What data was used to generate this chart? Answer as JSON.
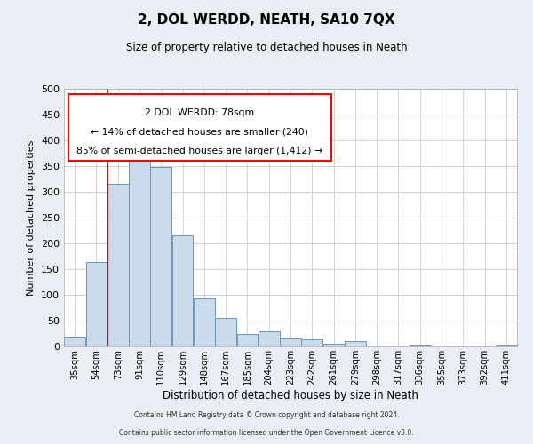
{
  "title": "2, DOL WERDD, NEATH, SA10 7QX",
  "subtitle": "Size of property relative to detached houses in Neath",
  "xlabel": "Distribution of detached houses by size in Neath",
  "ylabel": "Number of detached properties",
  "bin_labels": [
    "35sqm",
    "54sqm",
    "73sqm",
    "91sqm",
    "110sqm",
    "129sqm",
    "148sqm",
    "167sqm",
    "185sqm",
    "204sqm",
    "223sqm",
    "242sqm",
    "261sqm",
    "279sqm",
    "298sqm",
    "317sqm",
    "336sqm",
    "355sqm",
    "373sqm",
    "392sqm",
    "411sqm"
  ],
  "bar_heights": [
    17,
    163,
    315,
    378,
    348,
    215,
    93,
    55,
    25,
    29,
    15,
    14,
    6,
    10,
    0,
    0,
    2,
    0,
    0,
    0,
    2
  ],
  "bar_color": "#c9daea",
  "bar_edge_color": "#6699bb",
  "bar_edge_width": 0.7,
  "vline_x_index": 2,
  "vline_color": "red",
  "vline_linewidth": 1.0,
  "annotation_line1": "2 DOL WERDD: 78sqm",
  "annotation_line2": "← 14% of detached houses are smaller (240)",
  "annotation_line3": "85% of semi-detached houses are larger (1,412) →",
  "ylim": [
    0,
    500
  ],
  "yticks": [
    0,
    50,
    100,
    150,
    200,
    250,
    300,
    350,
    400,
    450,
    500
  ],
  "background_color": "#e8eef4",
  "plot_background_color": "#ffffff",
  "footer_line1": "Contains HM Land Registry data © Crown copyright and database right 2024.",
  "footer_line2": "Contains public sector information licensed under the Open Government Licence v3.0."
}
